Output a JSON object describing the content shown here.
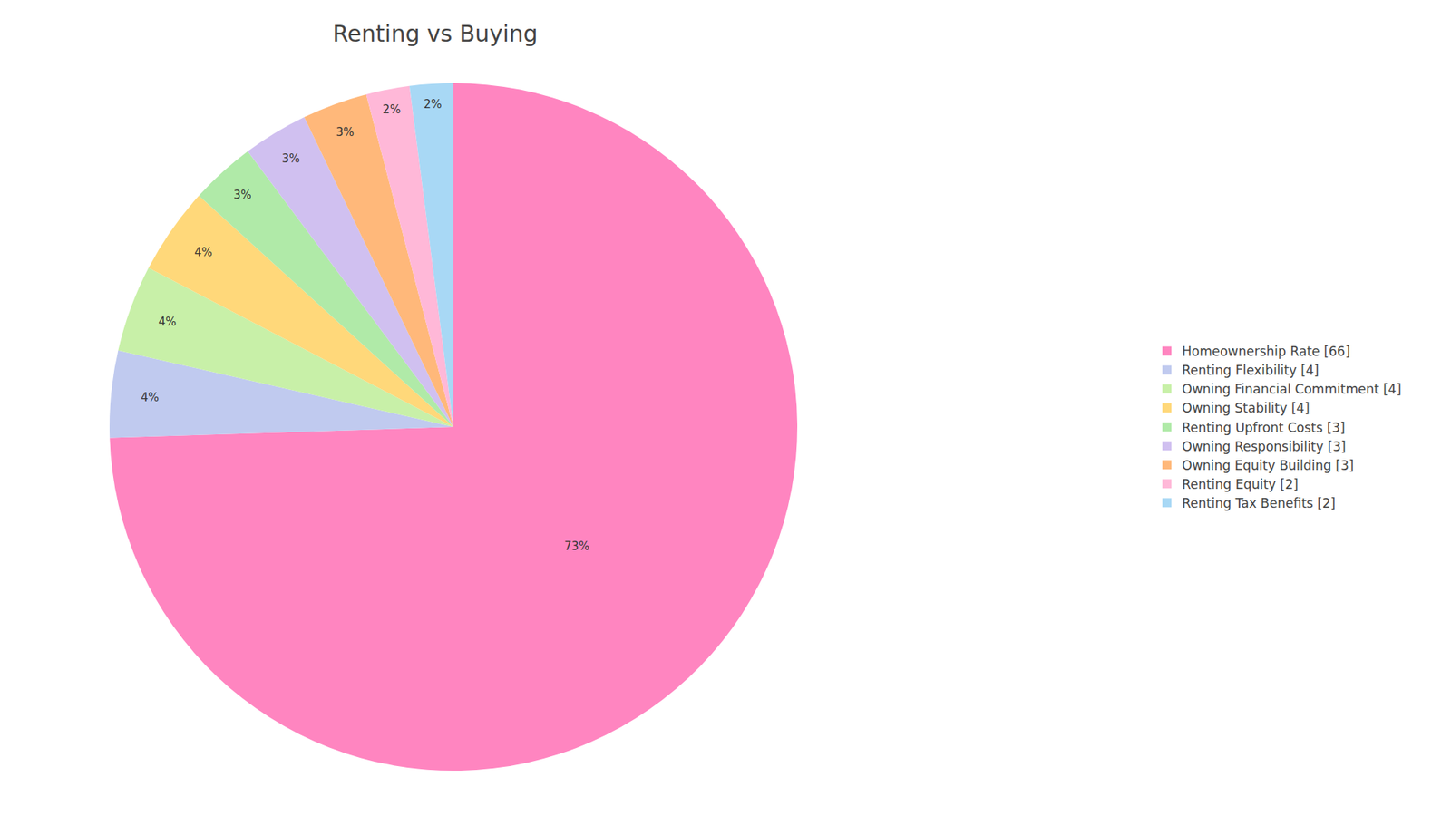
{
  "chart_data": {
    "type": "pie",
    "title": "Renting vs Buying",
    "categories": [
      "Homeownership Rate [66]",
      "Renting Flexibility [4]",
      "Owning Financial Commitment [4]",
      "Owning Stability [4]",
      "Renting Upfront Costs [3]",
      "Owning Responsibility [3]",
      "Owning Equity Building [3]",
      "Renting Equity [2]",
      "Renting Tax Benefits [2]"
    ],
    "values": [
      73,
      4,
      4,
      4,
      3,
      3,
      3,
      2,
      2
    ],
    "value_labels": [
      "73%",
      "4%",
      "4%",
      "4%",
      "3%",
      "3%",
      "3%",
      "2%",
      "2%"
    ],
    "colors": [
      "#FF85C0",
      "#C0CAEF",
      "#C8F0A8",
      "#FFD87A",
      "#B0EAA8",
      "#D0C0F0",
      "#FFB87A",
      "#FFB8D8",
      "#A8D8F5"
    ],
    "data_labels": true,
    "legend": "right"
  }
}
